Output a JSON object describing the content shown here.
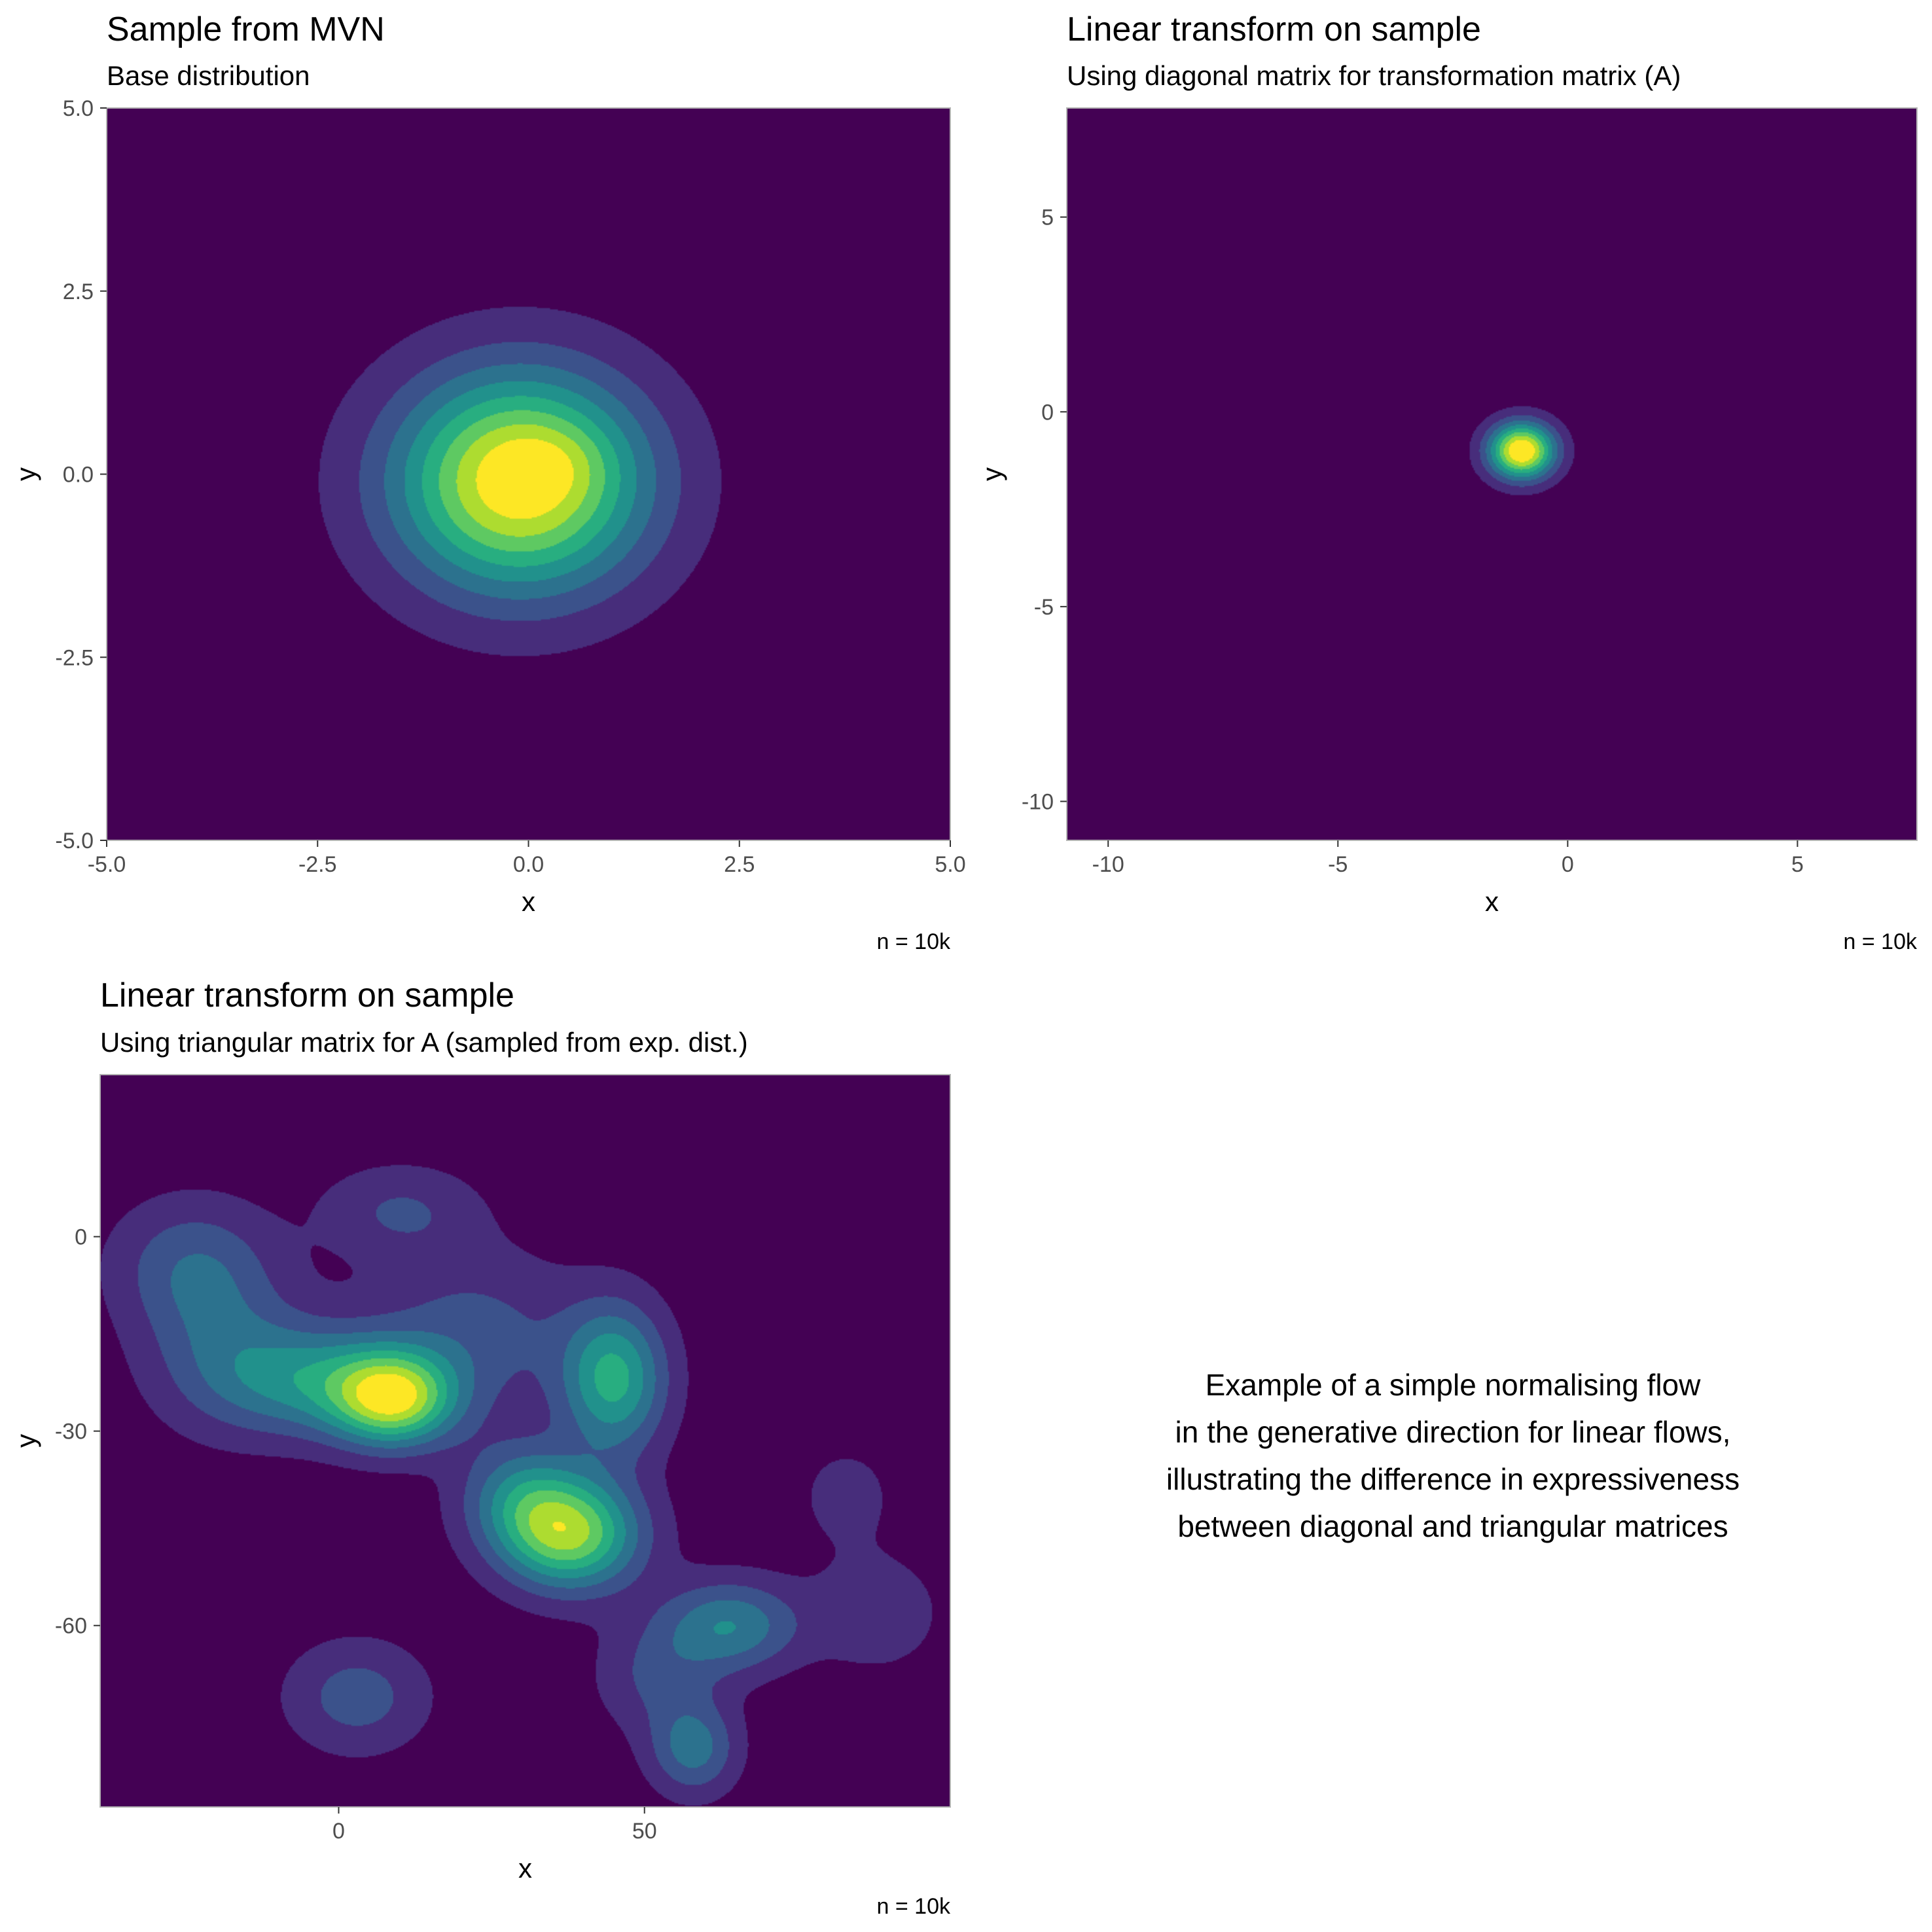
{
  "chart_data": [
    {
      "type": "contour",
      "title": "Sample from MVN",
      "subtitle": "Base distribution",
      "xlabel": "x",
      "ylabel": "y",
      "caption": "n = 10k",
      "xlim": [
        -5,
        5
      ],
      "ylim": [
        -5,
        5
      ],
      "xticks": [
        -5.0,
        -2.5,
        0.0,
        2.5,
        5.0
      ],
      "xtick_labels": [
        "-5.0",
        "-2.5",
        "0.0",
        "2.5",
        "5.0"
      ],
      "yticks": [
        -5.0,
        -2.5,
        0.0,
        2.5,
        5.0
      ],
      "ytick_labels": [
        "-5.0",
        "-2.5",
        "0.0",
        "2.5",
        "5.0"
      ],
      "grid": false,
      "fill_palette": "viridis",
      "density_peaks": [
        {
          "x": -0.1,
          "y": -0.1,
          "sx": 1.05,
          "sy": 1.05,
          "w": 1.0
        },
        {
          "x": 0.3,
          "y": 0.15,
          "sx": 0.45,
          "sy": 0.35,
          "w": 0.08
        }
      ]
    },
    {
      "type": "contour",
      "title": "Linear transform on sample",
      "subtitle": "Using diagonal matrix for transformation matrix (A)",
      "xlabel": "x",
      "ylabel": "y",
      "caption": "n = 10k",
      "xlim": [
        -10.9,
        7.6
      ],
      "ylim": [
        -11,
        7.8
      ],
      "xticks": [
        -10,
        -5,
        0,
        5
      ],
      "xtick_labels": [
        "-10",
        "-5",
        "0",
        "5"
      ],
      "yticks": [
        -10,
        -5,
        0,
        5
      ],
      "ytick_labels": [
        "-10",
        "-5",
        "0",
        "5"
      ],
      "grid": false,
      "fill_palette": "viridis",
      "density_peaks": [
        {
          "x": -1.0,
          "y": -1.0,
          "sx": 0.5,
          "sy": 0.5,
          "w": 1.0
        }
      ]
    },
    {
      "type": "contour",
      "title": "Linear transform on sample",
      "subtitle": "Using triangular matrix for A (sampled from exp. dist.)",
      "xlabel": "x",
      "ylabel": "y",
      "caption": "n = 10k",
      "xlim": [
        -39,
        100
      ],
      "ylim": [
        -88,
        25
      ],
      "xticks": [
        0,
        50
      ],
      "xtick_labels": [
        "0",
        "50"
      ],
      "yticks": [
        -60,
        -30,
        0
      ],
      "ytick_labels": [
        "-60",
        "-30",
        "0"
      ],
      "grid": false,
      "fill_palette": "viridis",
      "density_peaks": [
        {
          "x": 9,
          "y": -25,
          "sx": 7,
          "sy": 5,
          "w": 1.0
        },
        {
          "x": -5,
          "y": -22,
          "sx": 11,
          "sy": 6,
          "w": 0.55
        },
        {
          "x": 38,
          "y": -46,
          "sx": 8,
          "sy": 6,
          "w": 0.95
        },
        {
          "x": 30,
          "y": -40,
          "sx": 7,
          "sy": 6,
          "w": 0.45
        },
        {
          "x": 45,
          "y": -22,
          "sx": 6,
          "sy": 8,
          "w": 0.72
        },
        {
          "x": 64,
          "y": -60,
          "sx": 8,
          "sy": 5,
          "w": 0.52
        },
        {
          "x": 58,
          "y": -79,
          "sx": 5,
          "sy": 5,
          "w": 0.45
        },
        {
          "x": 3,
          "y": -71,
          "sx": 8,
          "sy": 6,
          "w": 0.32
        },
        {
          "x": -25,
          "y": -4,
          "sx": 9,
          "sy": 7,
          "w": 0.25
        },
        {
          "x": 10,
          "y": 4,
          "sx": 9,
          "sy": 5,
          "w": 0.25
        },
        {
          "x": 22,
          "y": -15,
          "sx": 12,
          "sy": 9,
          "w": 0.3
        },
        {
          "x": 88,
          "y": -58,
          "sx": 7,
          "sy": 6,
          "w": 0.22
        },
        {
          "x": 83,
          "y": -40,
          "sx": 6,
          "sy": 6,
          "w": 0.15
        },
        {
          "x": 52,
          "y": -68,
          "sx": 7,
          "sy": 6,
          "w": 0.25
        },
        {
          "x": -20,
          "y": -14,
          "sx": 9,
          "sy": 10,
          "w": 0.3
        }
      ]
    }
  ],
  "note": {
    "lines": [
      "Example of a simple normalising flow",
      "in the generative direction for linear flows,",
      "illustrating the difference in expressiveness",
      "between diagonal and triangular matrices"
    ]
  }
}
